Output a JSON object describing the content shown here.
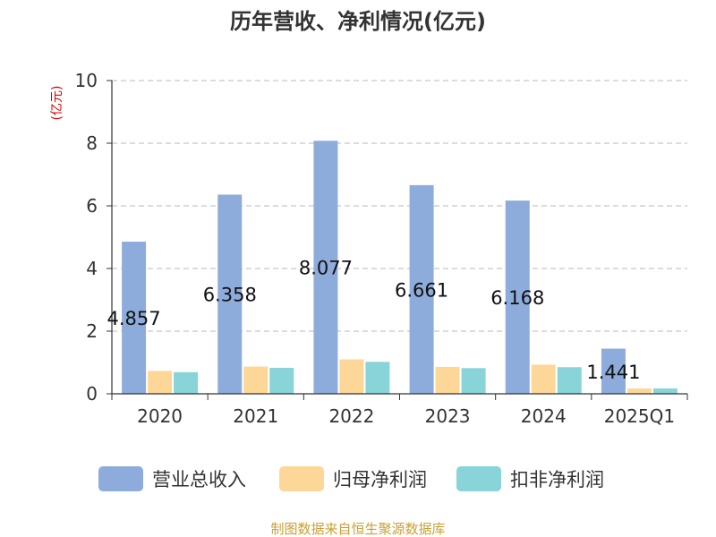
{
  "chart_data": {
    "type": "bar",
    "title": "历年营收、净利情况(亿元)",
    "ylabel": "(亿元)",
    "ylim": [
      0,
      10
    ],
    "yticks": [
      0,
      2,
      4,
      6,
      8,
      10
    ],
    "grid": true,
    "legend_position": "bottom",
    "categories": [
      "2020",
      "2021",
      "2022",
      "2023",
      "2024",
      "2025Q1"
    ],
    "series": [
      {
        "name": "营业总收入",
        "color": "#8eacdb",
        "values": [
          4.857,
          6.358,
          8.077,
          6.661,
          6.168,
          1.441
        ],
        "labels": [
          "4.857",
          "6.358",
          "8.077",
          "6.661",
          "6.168",
          "1.441"
        ]
      },
      {
        "name": "归母净利润",
        "color": "#fdd797",
        "values": [
          0.73,
          0.87,
          1.1,
          0.86,
          0.93,
          0.17
        ]
      },
      {
        "name": "扣非净利润",
        "color": "#88d4d8",
        "values": [
          0.69,
          0.83,
          1.02,
          0.82,
          0.85,
          0.17
        ]
      }
    ]
  },
  "source": "制图数据来自恒生聚源数据库",
  "colors": {
    "ylabel": "#dd0000",
    "source": "#c8a032",
    "grid": "#c8c8c8",
    "axis": "#333333"
  }
}
